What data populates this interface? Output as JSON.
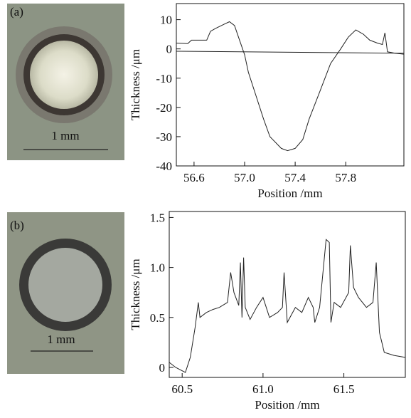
{
  "chart_data": [
    {
      "type": "line",
      "panel_label": "(a)",
      "scale_bar_label": "1 mm",
      "xlabel": "Position /mm",
      "ylabel": "Thickness /μm",
      "xlim": [
        56.46,
        58.26
      ],
      "ylim": [
        -40,
        15.5
      ],
      "xticks": [
        56.6,
        {
          "value": 57,
          "label": "57.0"
        },
        57.4,
        57.8
      ],
      "yticks": [
        -40,
        -30,
        -20,
        -10,
        0,
        10
      ],
      "series": [
        {
          "color": "#222222",
          "x": [
            56.46,
            56.55,
            56.58,
            56.7,
            56.73,
            56.77,
            56.84,
            56.88,
            56.92,
            56.96,
            57.0,
            57.03,
            57.09,
            57.15,
            57.2,
            57.29,
            57.34,
            57.4,
            57.46,
            57.51,
            57.6,
            57.68,
            57.76,
            57.82,
            57.88,
            57.94,
            57.99,
            58.05,
            58.09,
            58.11,
            58.13,
            58.19,
            58.26
          ],
          "values": [
            2,
            1.8,
            3,
            3,
            6,
            7,
            8.5,
            9.3,
            8,
            3,
            -2,
            -8,
            -16,
            -24,
            -30,
            -34,
            -34.8,
            -34,
            -31,
            -24,
            -14,
            -5,
            0,
            4,
            6.5,
            5,
            3,
            2,
            1.5,
            5.5,
            -1,
            -1.5,
            -1.8
          ]
        },
        {
          "color": "#222222",
          "x": [
            56.46,
            58.26
          ],
          "values": [
            -0.8,
            -1.5
          ]
        }
      ]
    },
    {
      "type": "line",
      "panel_label": "(b)",
      "scale_bar_label": "1 mm",
      "xlabel": "Position /mm",
      "ylabel": "Thickness /μm",
      "xlim": [
        60.42,
        61.88
      ],
      "ylim": [
        -0.1,
        1.56
      ],
      "xticks": [
        60.5,
        {
          "value": 61,
          "label": "61.0"
        },
        61.5
      ],
      "yticks": [
        0,
        0.5,
        {
          "value": 1,
          "label": "1.0"
        },
        1.5
      ],
      "series": [
        {
          "color": "#222222",
          "x": [
            60.42,
            60.46,
            60.52,
            60.55,
            60.58,
            60.6,
            60.61,
            60.65,
            60.69,
            60.73,
            60.78,
            60.8,
            60.82,
            60.85,
            60.86,
            60.87,
            60.88,
            60.89,
            60.92,
            60.96,
            61.0,
            61.04,
            61.09,
            61.12,
            61.13,
            61.15,
            61.2,
            61.24,
            61.28,
            61.31,
            61.32,
            61.35,
            61.39,
            61.41,
            61.42,
            61.44,
            61.48,
            61.53,
            61.54,
            61.56,
            61.59,
            61.64,
            61.68,
            61.7,
            61.72,
            61.75,
            61.81,
            61.88
          ],
          "values": [
            0.05,
            0,
            -0.05,
            0.1,
            0.4,
            0.65,
            0.5,
            0.55,
            0.58,
            0.6,
            0.65,
            0.95,
            0.75,
            0.62,
            1.05,
            0.5,
            1.1,
            0.6,
            0.48,
            0.6,
            0.7,
            0.5,
            0.55,
            0.6,
            0.95,
            0.45,
            0.6,
            0.55,
            0.7,
            0.6,
            0.45,
            0.6,
            1.28,
            1.25,
            0.45,
            0.65,
            0.6,
            0.75,
            1.22,
            0.8,
            0.7,
            0.6,
            0.65,
            1.05,
            0.35,
            0.15,
            0.12,
            0.1
          ]
        }
      ]
    }
  ]
}
